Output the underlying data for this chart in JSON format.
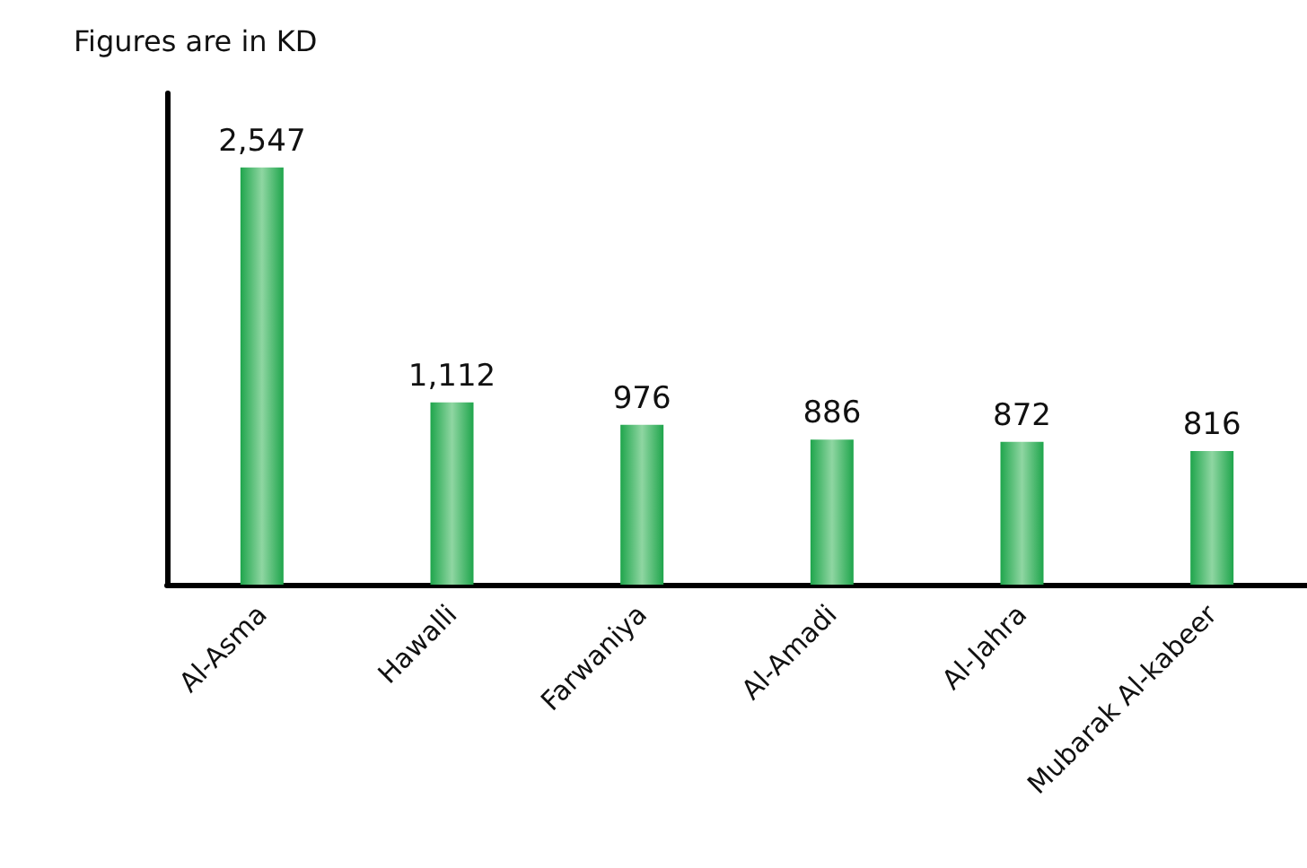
{
  "chart_data": {
    "type": "bar",
    "title": "Figures are in KD",
    "categories": [
      "Al-Asma",
      "Hawalli",
      "Farwaniya",
      "Al-Amadi",
      "Al-Jahra",
      "Mubarak Al-kabeer"
    ],
    "values": [
      2547,
      1112,
      976,
      886,
      872,
      816
    ],
    "value_labels": [
      "2,547",
      "1,112",
      "976",
      "886",
      "872",
      "816"
    ],
    "color": "#1fa54c",
    "tick_labels": "x"
  }
}
